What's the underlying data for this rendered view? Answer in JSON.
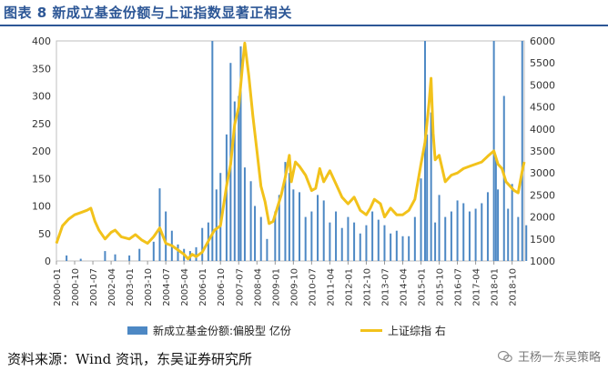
{
  "title": "图表 8 新成立基金份额与上证指数显著正相关",
  "legend": {
    "bar_label": "新成立基金份额:偏股型  亿份",
    "line_label": "上证综指  右"
  },
  "source": "资料来源：Wind 资讯，东吴证券研究所",
  "watermark": "王杨一东吴策略",
  "colors": {
    "bar": "#4d88c4",
    "line": "#f2c21b",
    "title": "#2d5796"
  },
  "chart_data": {
    "type": "bar+line",
    "title": "图表 8 新成立基金份额与上证指数显著正相关",
    "x_ticks": [
      "2000-01",
      "2000-10",
      "2001-07",
      "2002-04",
      "2003-01",
      "2003-10",
      "2004-07",
      "2005-04",
      "2006-01",
      "2006-10",
      "2007-07",
      "2008-04",
      "2009-01",
      "2009-10",
      "2010-07",
      "2011-04",
      "2012-01",
      "2012-10",
      "2013-07",
      "2014-04",
      "2015-01",
      "2015-10",
      "2016-07",
      "2017-04",
      "2018-01",
      "2018-10"
    ],
    "y_left": {
      "min": 0,
      "max": 400,
      "ticks": [
        0,
        50,
        100,
        150,
        200,
        250,
        300,
        350,
        400
      ]
    },
    "y_right": {
      "min": 1000,
      "max": 6000,
      "ticks": [
        1000,
        1500,
        2000,
        2500,
        3000,
        3500,
        4000,
        4500,
        5000,
        5500,
        6000
      ]
    },
    "series": [
      {
        "name": "新成立基金份额:偏股型  亿份",
        "kind": "bar",
        "axis": "left",
        "points": [
          [
            "2000-01",
            0
          ],
          [
            "2000-06",
            10
          ],
          [
            "2001-01",
            4
          ],
          [
            "2001-06",
            0
          ],
          [
            "2002-01",
            18
          ],
          [
            "2002-06",
            12
          ],
          [
            "2003-01",
            10
          ],
          [
            "2003-06",
            22
          ],
          [
            "2004-01",
            35
          ],
          [
            "2004-04",
            132
          ],
          [
            "2004-07",
            90
          ],
          [
            "2004-10",
            55
          ],
          [
            "2005-01",
            30
          ],
          [
            "2005-04",
            22
          ],
          [
            "2005-07",
            18
          ],
          [
            "2005-10",
            25
          ],
          [
            "2006-01",
            60
          ],
          [
            "2006-04",
            70
          ],
          [
            "2006-06",
            400
          ],
          [
            "2006-08",
            130
          ],
          [
            "2006-10",
            160
          ],
          [
            "2007-01",
            230
          ],
          [
            "2007-03",
            360
          ],
          [
            "2007-05",
            290
          ],
          [
            "2007-07",
            300
          ],
          [
            "2007-08",
            390
          ],
          [
            "2007-10",
            170
          ],
          [
            "2008-01",
            145
          ],
          [
            "2008-03",
            100
          ],
          [
            "2008-06",
            80
          ],
          [
            "2008-09",
            40
          ],
          [
            "2009-01",
            90
          ],
          [
            "2009-03",
            120
          ],
          [
            "2009-06",
            180
          ],
          [
            "2009-08",
            160
          ],
          [
            "2009-10",
            130
          ],
          [
            "2010-01",
            125
          ],
          [
            "2010-04",
            80
          ],
          [
            "2010-07",
            90
          ],
          [
            "2010-10",
            120
          ],
          [
            "2011-01",
            110
          ],
          [
            "2011-04",
            70
          ],
          [
            "2011-07",
            90
          ],
          [
            "2011-10",
            60
          ],
          [
            "2012-01",
            80
          ],
          [
            "2012-04",
            70
          ],
          [
            "2012-07",
            50
          ],
          [
            "2012-10",
            65
          ],
          [
            "2013-01",
            90
          ],
          [
            "2013-04",
            75
          ],
          [
            "2013-07",
            65
          ],
          [
            "2013-10",
            50
          ],
          [
            "2014-01",
            55
          ],
          [
            "2014-04",
            45
          ],
          [
            "2014-07",
            45
          ],
          [
            "2014-10",
            80
          ],
          [
            "2015-01",
            150
          ],
          [
            "2015-03",
            400
          ],
          [
            "2015-04",
            230
          ],
          [
            "2015-06",
            270
          ],
          [
            "2015-08",
            70
          ],
          [
            "2015-10",
            120
          ],
          [
            "2016-01",
            80
          ],
          [
            "2016-04",
            90
          ],
          [
            "2016-07",
            110
          ],
          [
            "2016-10",
            105
          ],
          [
            "2017-01",
            90
          ],
          [
            "2017-04",
            95
          ],
          [
            "2017-07",
            105
          ],
          [
            "2017-10",
            125
          ],
          [
            "2018-01",
            400
          ],
          [
            "2018-02",
            190
          ],
          [
            "2018-03",
            130
          ],
          [
            "2018-06",
            300
          ],
          [
            "2018-08",
            95
          ],
          [
            "2018-10",
            140
          ],
          [
            "2019-01",
            80
          ],
          [
            "2019-03",
            400
          ],
          [
            "2019-05",
            65
          ]
        ]
      },
      {
        "name": "上证综指  右",
        "kind": "line",
        "axis": "right",
        "points": [
          [
            "2000-01",
            1400
          ],
          [
            "2000-04",
            1800
          ],
          [
            "2000-07",
            1950
          ],
          [
            "2000-10",
            2050
          ],
          [
            "2001-01",
            2100
          ],
          [
            "2001-04",
            2150
          ],
          [
            "2001-06",
            2200
          ],
          [
            "2001-08",
            1900
          ],
          [
            "2001-10",
            1700
          ],
          [
            "2002-01",
            1500
          ],
          [
            "2002-04",
            1650
          ],
          [
            "2002-06",
            1700
          ],
          [
            "2002-09",
            1550
          ],
          [
            "2003-01",
            1500
          ],
          [
            "2003-04",
            1600
          ],
          [
            "2003-07",
            1480
          ],
          [
            "2003-10",
            1400
          ],
          [
            "2004-01",
            1550
          ],
          [
            "2004-04",
            1750
          ],
          [
            "2004-07",
            1400
          ],
          [
            "2004-10",
            1350
          ],
          [
            "2005-01",
            1250
          ],
          [
            "2005-04",
            1150
          ],
          [
            "2005-06",
            1050
          ],
          [
            "2005-08",
            1150
          ],
          [
            "2005-10",
            1100
          ],
          [
            "2006-01",
            1200
          ],
          [
            "2006-04",
            1450
          ],
          [
            "2006-07",
            1700
          ],
          [
            "2006-10",
            1800
          ],
          [
            "2007-01",
            2700
          ],
          [
            "2007-03",
            3200
          ],
          [
            "2007-05",
            4100
          ],
          [
            "2007-07",
            4500
          ],
          [
            "2007-09",
            5500
          ],
          [
            "2007-10",
            5950
          ],
          [
            "2007-12",
            5200
          ],
          [
            "2008-02",
            4300
          ],
          [
            "2008-04",
            3500
          ],
          [
            "2008-06",
            2700
          ],
          [
            "2008-08",
            2350
          ],
          [
            "2008-10",
            1850
          ],
          [
            "2008-12",
            1900
          ],
          [
            "2009-02",
            2200
          ],
          [
            "2009-04",
            2500
          ],
          [
            "2009-06",
            2900
          ],
          [
            "2009-08",
            3400
          ],
          [
            "2009-09",
            2800
          ],
          [
            "2009-11",
            3250
          ],
          [
            "2010-01",
            3150
          ],
          [
            "2010-04",
            2950
          ],
          [
            "2010-07",
            2600
          ],
          [
            "2010-09",
            2650
          ],
          [
            "2010-11",
            3100
          ],
          [
            "2011-01",
            2800
          ],
          [
            "2011-04",
            3050
          ],
          [
            "2011-07",
            2750
          ],
          [
            "2011-10",
            2450
          ],
          [
            "2012-01",
            2300
          ],
          [
            "2012-04",
            2450
          ],
          [
            "2012-07",
            2150
          ],
          [
            "2012-10",
            2050
          ],
          [
            "2012-12",
            2200
          ],
          [
            "2013-02",
            2400
          ],
          [
            "2013-05",
            2300
          ],
          [
            "2013-07",
            2000
          ],
          [
            "2013-10",
            2200
          ],
          [
            "2014-01",
            2050
          ],
          [
            "2014-04",
            2050
          ],
          [
            "2014-07",
            2150
          ],
          [
            "2014-10",
            2400
          ],
          [
            "2015-01",
            3200
          ],
          [
            "2015-03",
            3700
          ],
          [
            "2015-05",
            4600
          ],
          [
            "2015-06",
            5150
          ],
          [
            "2015-07",
            3900
          ],
          [
            "2015-08",
            3300
          ],
          [
            "2015-10",
            3400
          ],
          [
            "2016-01",
            2800
          ],
          [
            "2016-04",
            2950
          ],
          [
            "2016-07",
            3000
          ],
          [
            "2016-10",
            3100
          ],
          [
            "2017-01",
            3150
          ],
          [
            "2017-04",
            3200
          ],
          [
            "2017-07",
            3250
          ],
          [
            "2017-10",
            3380
          ],
          [
            "2018-01",
            3500
          ],
          [
            "2018-03",
            3200
          ],
          [
            "2018-05",
            3100
          ],
          [
            "2018-07",
            2800
          ],
          [
            "2018-09",
            2700
          ],
          [
            "2018-11",
            2600
          ],
          [
            "2019-01",
            2550
          ],
          [
            "2019-03",
            3050
          ],
          [
            "2019-04",
            3250
          ]
        ]
      }
    ]
  }
}
